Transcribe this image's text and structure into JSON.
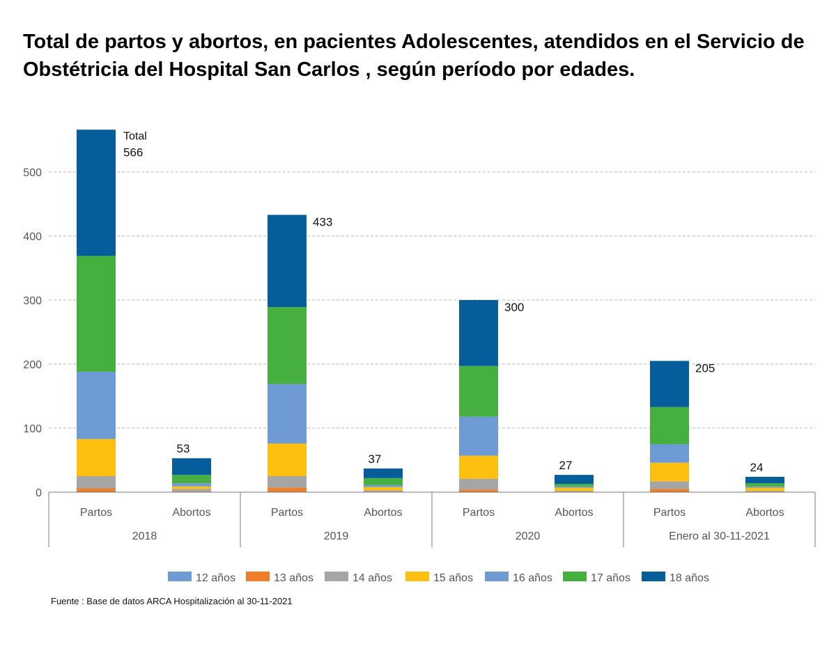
{
  "chart_data": {
    "type": "bar",
    "stacked": true,
    "title": "Total de partos y abortos,  en pacientes Adolescentes,  atendidos en el Servicio de Obstétricia del Hospital San Carlos , según período por edades.",
    "xlabel": "",
    "ylabel": "",
    "ylim": [
      0,
      566
    ],
    "yticks": [
      "0",
      "100",
      "200",
      "300",
      "400",
      "500"
    ],
    "grid": true,
    "legend_position": "bottom",
    "groups": [
      "2018",
      "2019",
      "2020",
      "Enero al 30-11-2021"
    ],
    "categories": [
      "Partos",
      "Abortos",
      "Partos",
      "Abortos",
      "Partos",
      "Abortos",
      "Partos",
      "Abortos"
    ],
    "series": [
      {
        "name": "12 años",
        "color": "#6f9bd4",
        "values": [
          0,
          0,
          0,
          0,
          0,
          0,
          0,
          0
        ]
      },
      {
        "name": "13 años",
        "color": "#f07d2a",
        "values": [
          6,
          1,
          7,
          1,
          4,
          0,
          5,
          0
        ]
      },
      {
        "name": "14 años",
        "color": "#a5a5a5",
        "values": [
          19,
          4,
          18,
          2,
          17,
          2,
          12,
          2
        ]
      },
      {
        "name": "15 años",
        "color": "#fdbf10",
        "values": [
          58,
          4,
          51,
          5,
          36,
          5,
          29,
          5
        ]
      },
      {
        "name": "16 años",
        "color": "#6f9bd4",
        "values": [
          105,
          5,
          93,
          3,
          61,
          2,
          29,
          2
        ]
      },
      {
        "name": "17 años",
        "color": "#45b040",
        "values": [
          181,
          13,
          120,
          11,
          79,
          4,
          58,
          5
        ]
      },
      {
        "name": "18 años",
        "color": "#055e99",
        "values": [
          197,
          26,
          144,
          15,
          103,
          14,
          72,
          10
        ]
      }
    ],
    "totals": [
      "566",
      "53",
      "433",
      "37",
      "300",
      "27",
      "205",
      "24"
    ],
    "total_prefix": "Total",
    "source": "Fuente : Base de datos ARCA Hospitalización al 30-11-2021"
  }
}
